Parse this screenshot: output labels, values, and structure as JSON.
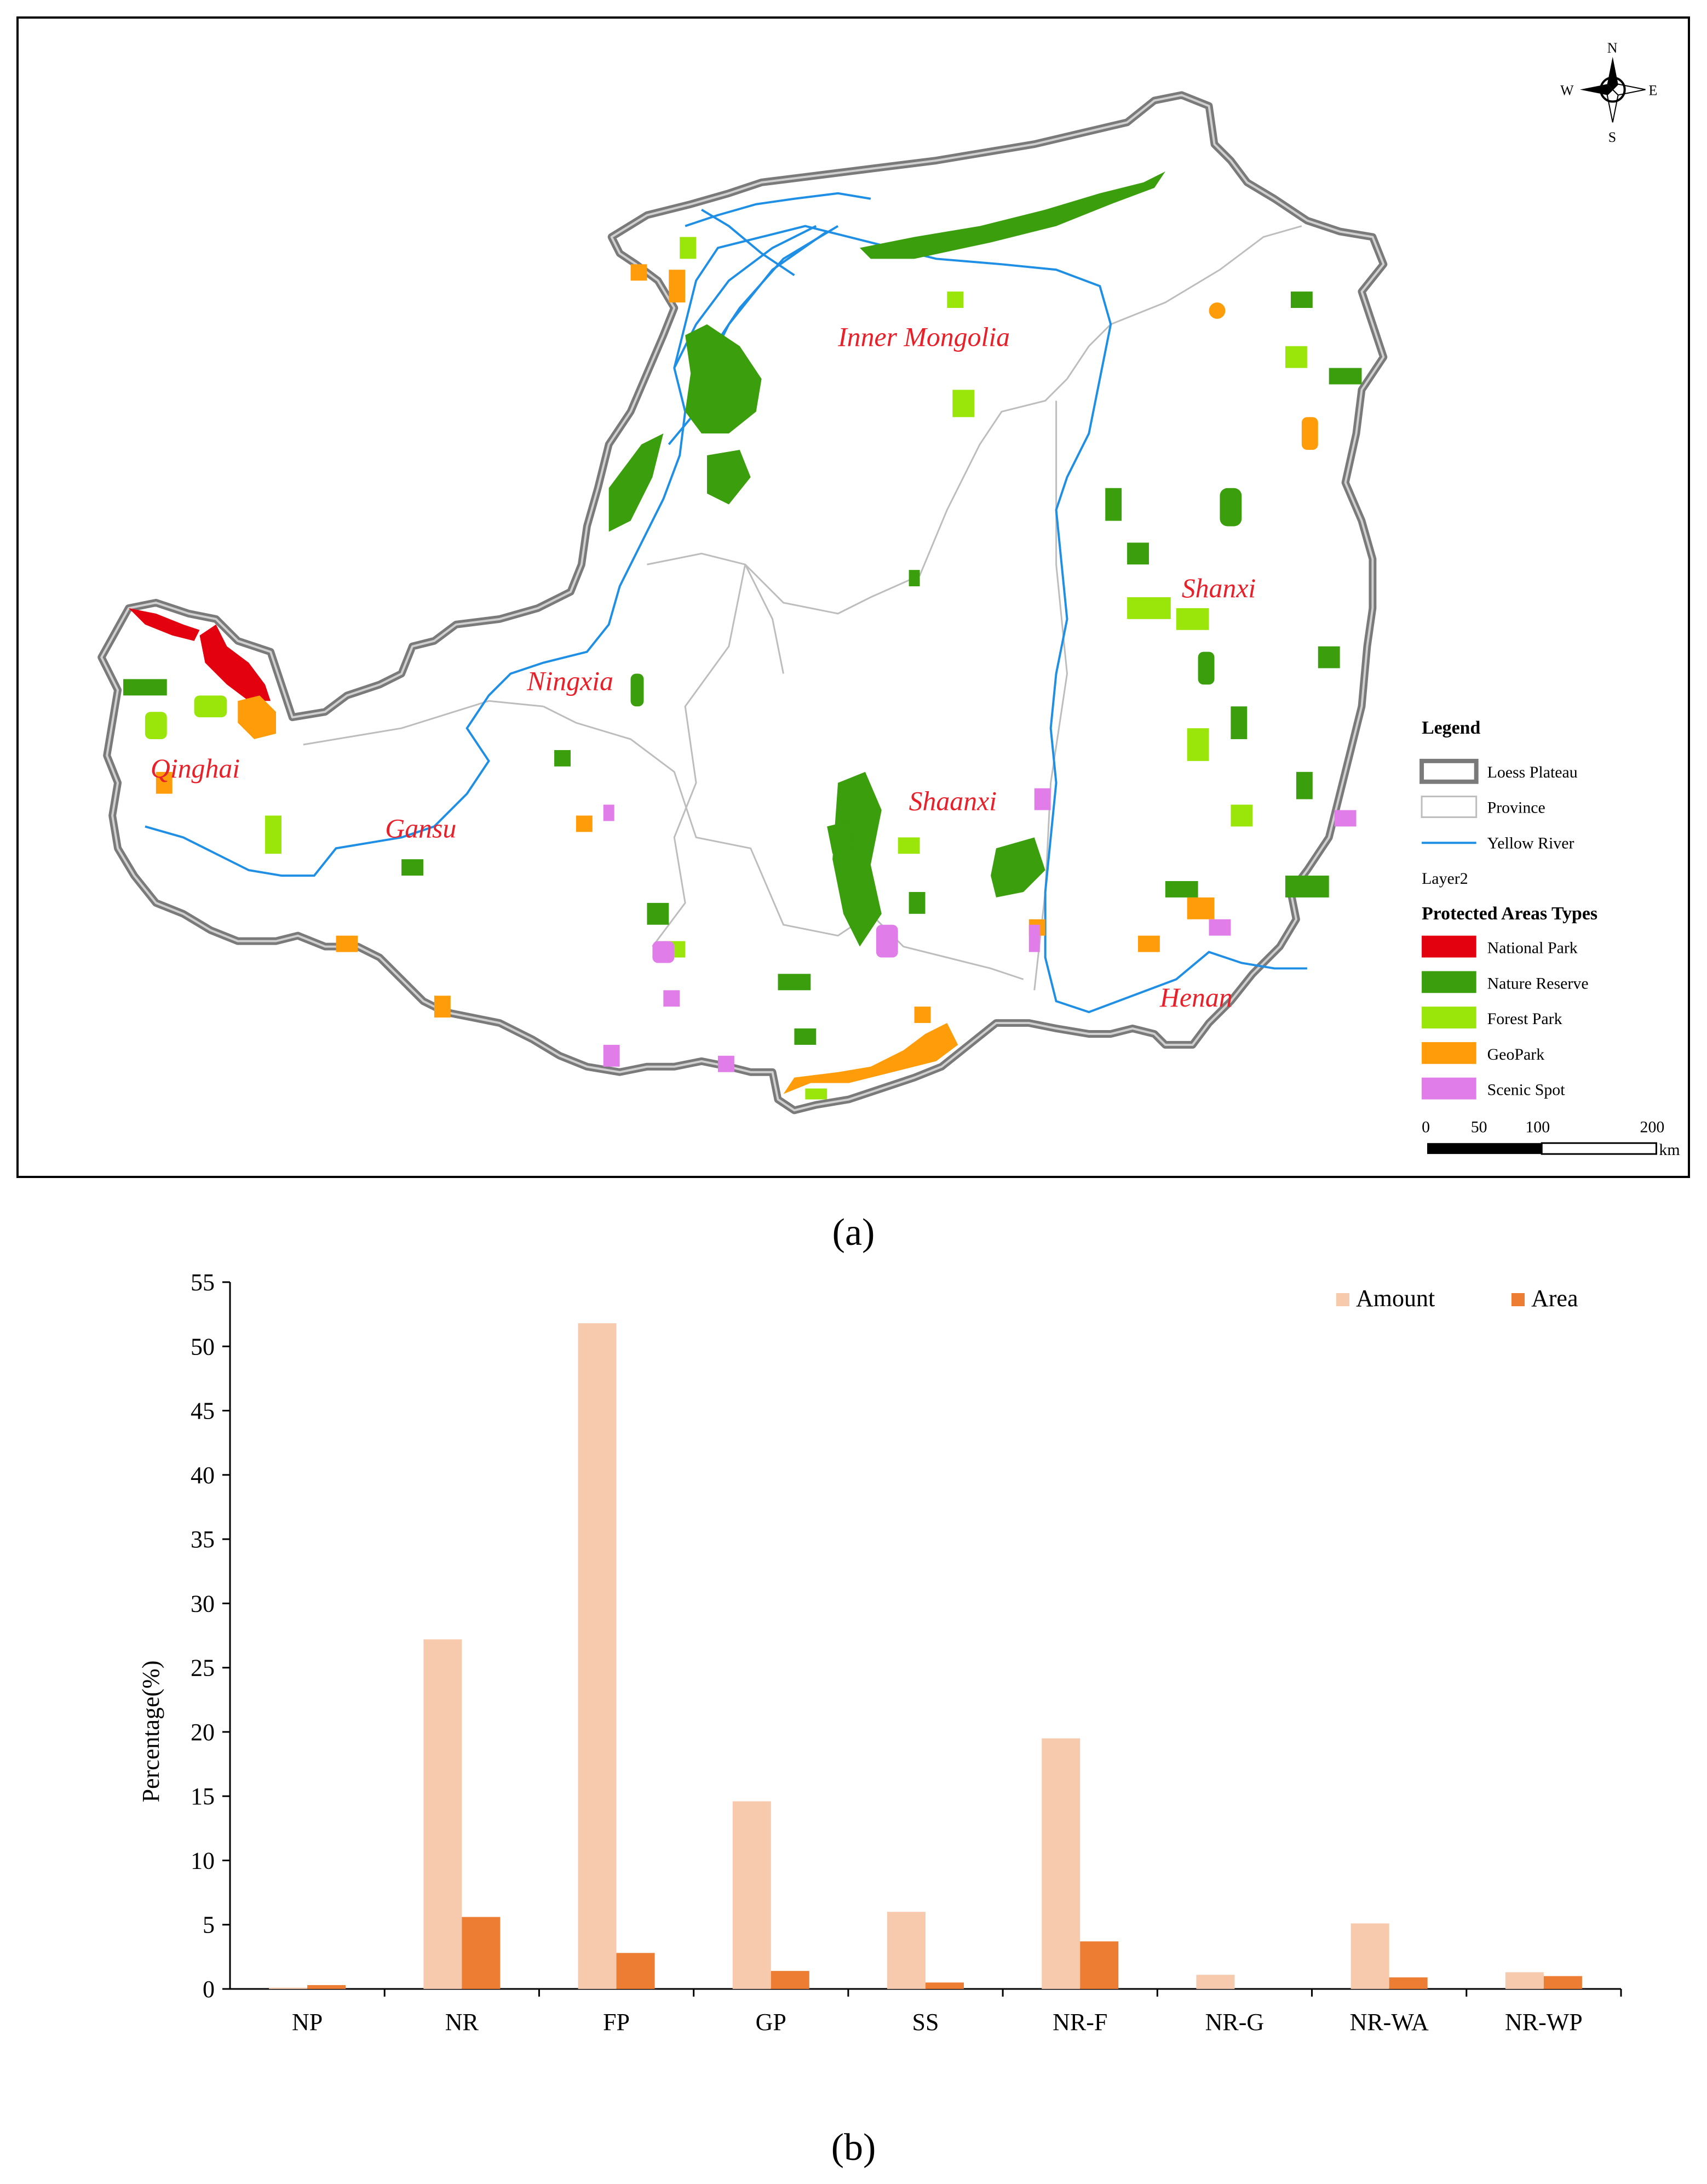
{
  "map": {
    "region_labels": [
      "Inner Mongolia",
      "Shanxi",
      "Ningxia",
      "Qinghai",
      "Gansu",
      "Shaanxi",
      "Henan"
    ],
    "compass": {
      "n": "N",
      "s": "S",
      "e": "E",
      "w": "W"
    },
    "legend": {
      "title": "Legend",
      "items": [
        {
          "label": "Loess Plateau",
          "kind": "outline"
        },
        {
          "label": "Province",
          "kind": "box"
        },
        {
          "label": "Yellow River",
          "kind": "line",
          "color": "#1f8fe5"
        }
      ],
      "layer_label": "Layer2",
      "types_title": "Protected Areas Types",
      "types": [
        {
          "label": "National Park",
          "color": "#e3000f"
        },
        {
          "label": "Nature Reserve",
          "color": "#3a9e0d"
        },
        {
          "label": "Forest Park",
          "color": "#9be60a"
        },
        {
          "label": "GeoPark",
          "color": "#ff9c0a"
        },
        {
          "label": "Scenic Spot",
          "color": "#e07de8"
        }
      ],
      "scale": {
        "ticks": [
          "0",
          "50",
          "100",
          "200"
        ],
        "unit": "km"
      }
    },
    "caption": "(a)"
  },
  "chart_data": {
    "type": "bar",
    "categories": [
      "NP",
      "NR",
      "FP",
      "GP",
      "SS",
      "NR-F",
      "NR-G",
      "NR-WA",
      "NR-WP"
    ],
    "series": [
      {
        "name": "Amount",
        "color": "#f7caad",
        "values": [
          0.1,
          27.2,
          51.8,
          14.6,
          6.0,
          19.5,
          1.1,
          5.1,
          1.3
        ]
      },
      {
        "name": "Area",
        "color": "#ec7d33",
        "values": [
          0.3,
          5.6,
          2.8,
          1.4,
          0.5,
          3.7,
          0.0,
          0.9,
          1.0
        ]
      }
    ],
    "ylabel": "Percentage(%)",
    "xlabel": "",
    "ylim": [
      0,
      55
    ],
    "yticks": [
      0,
      5,
      10,
      15,
      20,
      25,
      30,
      35,
      40,
      45,
      50,
      55
    ],
    "legend_position": "top-right",
    "grid": false
  },
  "chart_caption": "(b)"
}
